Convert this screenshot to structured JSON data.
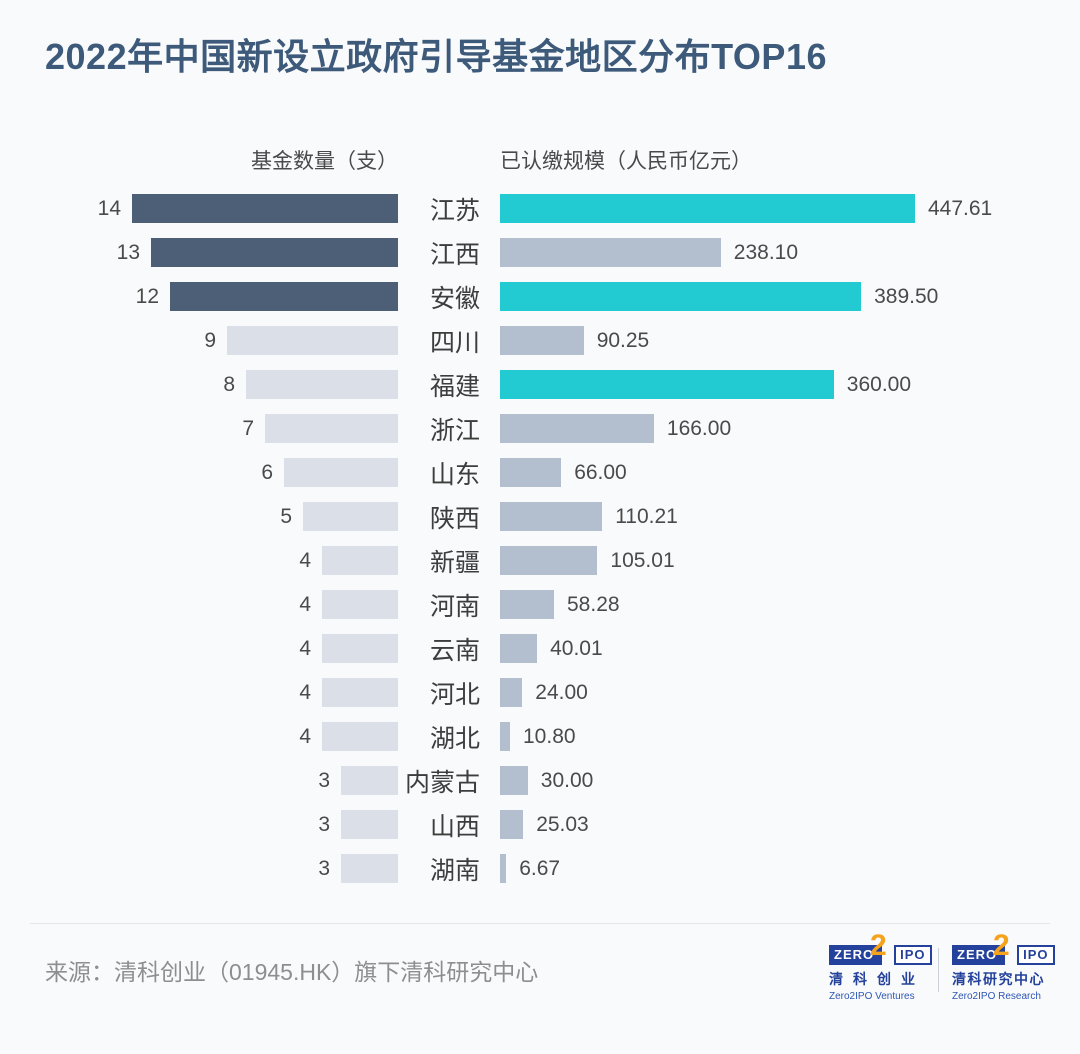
{
  "title": "2022年中国新设立政府引导基金地区分布TOP16",
  "chart_data": {
    "type": "bar",
    "variant": "bidirectional-tornado",
    "left_header": "基金数量（支）",
    "right_header": "已认缴规模（人民币亿元）",
    "left_series_name": "基金数量（支）",
    "right_series_name": "已认缴规模（人民币亿元）",
    "rows": [
      {
        "region": "江苏",
        "count": 14,
        "scale": 447.61,
        "scale_label": "447.61",
        "count_dark": true,
        "scale_teal": true
      },
      {
        "region": "江西",
        "count": 13,
        "scale": 238.1,
        "scale_label": "238.10",
        "count_dark": true,
        "scale_teal": false
      },
      {
        "region": "安徽",
        "count": 12,
        "scale": 389.5,
        "scale_label": "389.50",
        "count_dark": true,
        "scale_teal": true
      },
      {
        "region": "四川",
        "count": 9,
        "scale": 90.25,
        "scale_label": "90.25",
        "count_dark": false,
        "scale_teal": false
      },
      {
        "region": "福建",
        "count": 8,
        "scale": 360.0,
        "scale_label": "360.00",
        "count_dark": false,
        "scale_teal": true
      },
      {
        "region": "浙江",
        "count": 7,
        "scale": 166.0,
        "scale_label": "166.00",
        "count_dark": false,
        "scale_teal": false
      },
      {
        "region": "山东",
        "count": 6,
        "scale": 66.0,
        "scale_label": "66.00",
        "count_dark": false,
        "scale_teal": false
      },
      {
        "region": "陕西",
        "count": 5,
        "scale": 110.21,
        "scale_label": "110.21",
        "count_dark": false,
        "scale_teal": false
      },
      {
        "region": "新疆",
        "count": 4,
        "scale": 105.01,
        "scale_label": "105.01",
        "count_dark": false,
        "scale_teal": false
      },
      {
        "region": "河南",
        "count": 4,
        "scale": 58.28,
        "scale_label": "58.28",
        "count_dark": false,
        "scale_teal": false
      },
      {
        "region": "云南",
        "count": 4,
        "scale": 40.01,
        "scale_label": "40.01",
        "count_dark": false,
        "scale_teal": false
      },
      {
        "region": "河北",
        "count": 4,
        "scale": 24.0,
        "scale_label": "24.00",
        "count_dark": false,
        "scale_teal": false
      },
      {
        "region": "湖北",
        "count": 4,
        "scale": 10.8,
        "scale_label": "10.80",
        "count_dark": false,
        "scale_teal": false
      },
      {
        "region": "内蒙古",
        "count": 3,
        "scale": 30.0,
        "scale_label": "30.00",
        "count_dark": false,
        "scale_teal": false
      },
      {
        "region": "山西",
        "count": 3,
        "scale": 25.03,
        "scale_label": "25.03",
        "count_dark": false,
        "scale_teal": false
      },
      {
        "region": "湖南",
        "count": 3,
        "scale": 6.67,
        "scale_label": "6.67",
        "count_dark": false,
        "scale_teal": false
      }
    ],
    "colors": {
      "count_bar_dark": "#4d5e77",
      "count_bar_light": "#dbe0e8",
      "scale_bar_teal": "#22cbd2",
      "scale_bar_gray": "#b3bfce"
    },
    "left_axis_max": 14,
    "right_axis_max": 447.61,
    "grid": false,
    "legend_position": "none"
  },
  "footer": {
    "source": "来源：清科创业（01945.HK）旗下清科研究中心",
    "logos": [
      {
        "zero": "ZERO",
        "two": "2",
        "ipo": "IPO",
        "cn": "清科创业",
        "en": "Zero2IPO Ventures"
      },
      {
        "zero": "ZERO",
        "two": "2",
        "ipo": "IPO",
        "cn": "清科研究中心",
        "en": "Zero2IPO Research"
      }
    ],
    "logo_colors": {
      "blue": "#24429b",
      "orange": "#f5a31d"
    }
  }
}
